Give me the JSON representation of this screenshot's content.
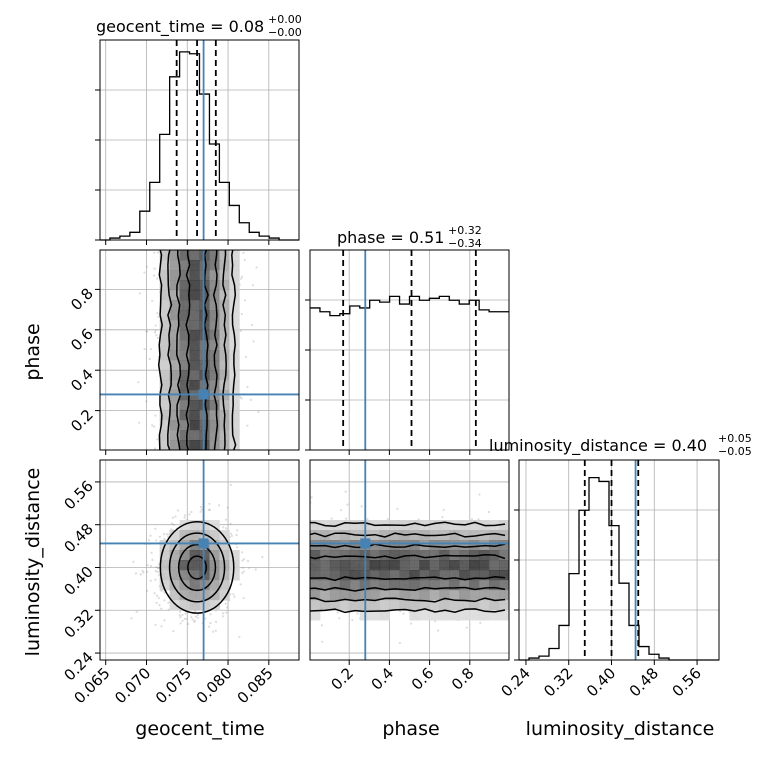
{
  "chart_data": {
    "type": "corner",
    "parameters": [
      "geocent_time",
      "phase",
      "luminosity_distance"
    ],
    "truths": {
      "geocent_time": 0.077,
      "phase": 0.28,
      "luminosity_distance": 0.445
    },
    "titles": [
      {
        "param": "geocent_time",
        "text": "geocent_time = 0.08",
        "plus": "+0.00",
        "minus": "−0.00"
      },
      {
        "param": "phase",
        "text": "phase = 0.51",
        "plus": "+0.32",
        "minus": "−0.34"
      },
      {
        "param": "luminosity_distance",
        "text": "luminosity_distance = 0.40",
        "plus": "+0.05",
        "minus": "−0.05"
      }
    ],
    "xlabels": [
      "geocent_time",
      "phase",
      "luminosity_distance"
    ],
    "ylabels": [
      "phase",
      "luminosity_distance"
    ],
    "ranges": {
      "geocent_time": [
        0.0643,
        0.0887
      ],
      "phase": [
        0.005,
        0.995
      ],
      "luminosity_distance": [
        0.227,
        0.601
      ]
    },
    "ticks": {
      "geocent_time": {
        "values": [
          0.065,
          0.07,
          0.075,
          0.08,
          0.085
        ],
        "labels": [
          "0.065",
          "0.070",
          "0.075",
          "0.080",
          "0.085"
        ]
      },
      "phase": {
        "values": [
          0.2,
          0.4,
          0.6,
          0.8
        ],
        "labels": [
          "0.2",
          "0.4",
          "0.6",
          "0.8"
        ]
      },
      "luminosity_distance": {
        "values": [
          0.24,
          0.32,
          0.4,
          0.48,
          0.56
        ],
        "labels": [
          "0.24",
          "0.32",
          "0.40",
          "0.48",
          "0.56"
        ]
      }
    },
    "histograms": {
      "geocent_time": {
        "edges_start": 0.0643,
        "bin_width": 0.00122,
        "counts": [
          0,
          1,
          2,
          4,
          15,
          30,
          55,
          85,
          98,
          97,
          76,
          50,
          30,
          18,
          9,
          4,
          2,
          1,
          0,
          0
        ]
      },
      "phase": {
        "edges_start": 0.005,
        "bin_width": 0.0495,
        "counts": [
          0.74,
          0.72,
          0.7,
          0.71,
          0.75,
          0.74,
          0.78,
          0.77,
          0.8,
          0.76,
          0.8,
          0.78,
          0.79,
          0.8,
          0.78,
          0.76,
          0.78,
          0.73,
          0.72,
          0.72
        ]
      },
      "luminosity_distance": {
        "edges_start": 0.227,
        "bin_width": 0.0187,
        "counts": [
          0,
          1,
          2,
          6,
          18,
          45,
          78,
          95,
          93,
          70,
          40,
          18,
          7,
          3,
          1,
          0,
          0,
          0,
          0,
          0
        ]
      }
    },
    "hist_ymax": {
      "geocent_time": 100,
      "phase": 1.0,
      "luminosity_distance": 100
    },
    "quantiles": {
      "geocent_time": [
        0.0737,
        0.0762,
        0.0785
      ],
      "phase": [
        0.17,
        0.51,
        0.83
      ],
      "luminosity_distance": [
        0.35,
        0.4,
        0.45
      ]
    },
    "grid": true
  }
}
